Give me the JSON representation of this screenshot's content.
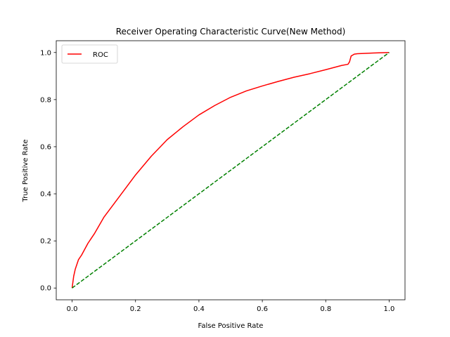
{
  "chart_data": {
    "type": "line",
    "title": "Receiver Operating Characteristic Curve(New Method)",
    "xlabel": "False Positive Rate",
    "ylabel": "True Positive Rate",
    "xlim": [
      -0.05,
      1.05
    ],
    "ylim": [
      -0.05,
      1.05
    ],
    "xticks": [
      "0.0",
      "0.2",
      "0.4",
      "0.6",
      "0.8",
      "1.0"
    ],
    "yticks": [
      "0.0",
      "0.2",
      "0.4",
      "0.6",
      "0.8",
      "1.0"
    ],
    "grid": false,
    "legend": {
      "position": "upper-left",
      "entries": [
        "ROC"
      ]
    },
    "colors": {
      "roc": "#ff0000",
      "baseline": "#008000"
    },
    "series": [
      {
        "name": "ROC",
        "style": "solid",
        "color": "#ff0000",
        "x": [
          0,
          0.005,
          0.01,
          0.02,
          0.03,
          0.05,
          0.07,
          0.1,
          0.15,
          0.2,
          0.25,
          0.3,
          0.35,
          0.4,
          0.45,
          0.5,
          0.55,
          0.6,
          0.65,
          0.7,
          0.75,
          0.8,
          0.85,
          0.87,
          0.875,
          0.88,
          0.89,
          0.9,
          0.95,
          1.0
        ],
        "y": [
          0,
          0.05,
          0.08,
          0.12,
          0.14,
          0.19,
          0.23,
          0.3,
          0.39,
          0.48,
          0.56,
          0.63,
          0.685,
          0.735,
          0.775,
          0.81,
          0.837,
          0.858,
          0.877,
          0.895,
          0.91,
          0.927,
          0.945,
          0.95,
          0.96,
          0.985,
          0.993,
          0.995,
          0.998,
          1.0
        ]
      },
      {
        "style": "dashed",
        "color": "#008000",
        "x": [
          0,
          1
        ],
        "y": [
          0,
          1
        ]
      }
    ]
  }
}
